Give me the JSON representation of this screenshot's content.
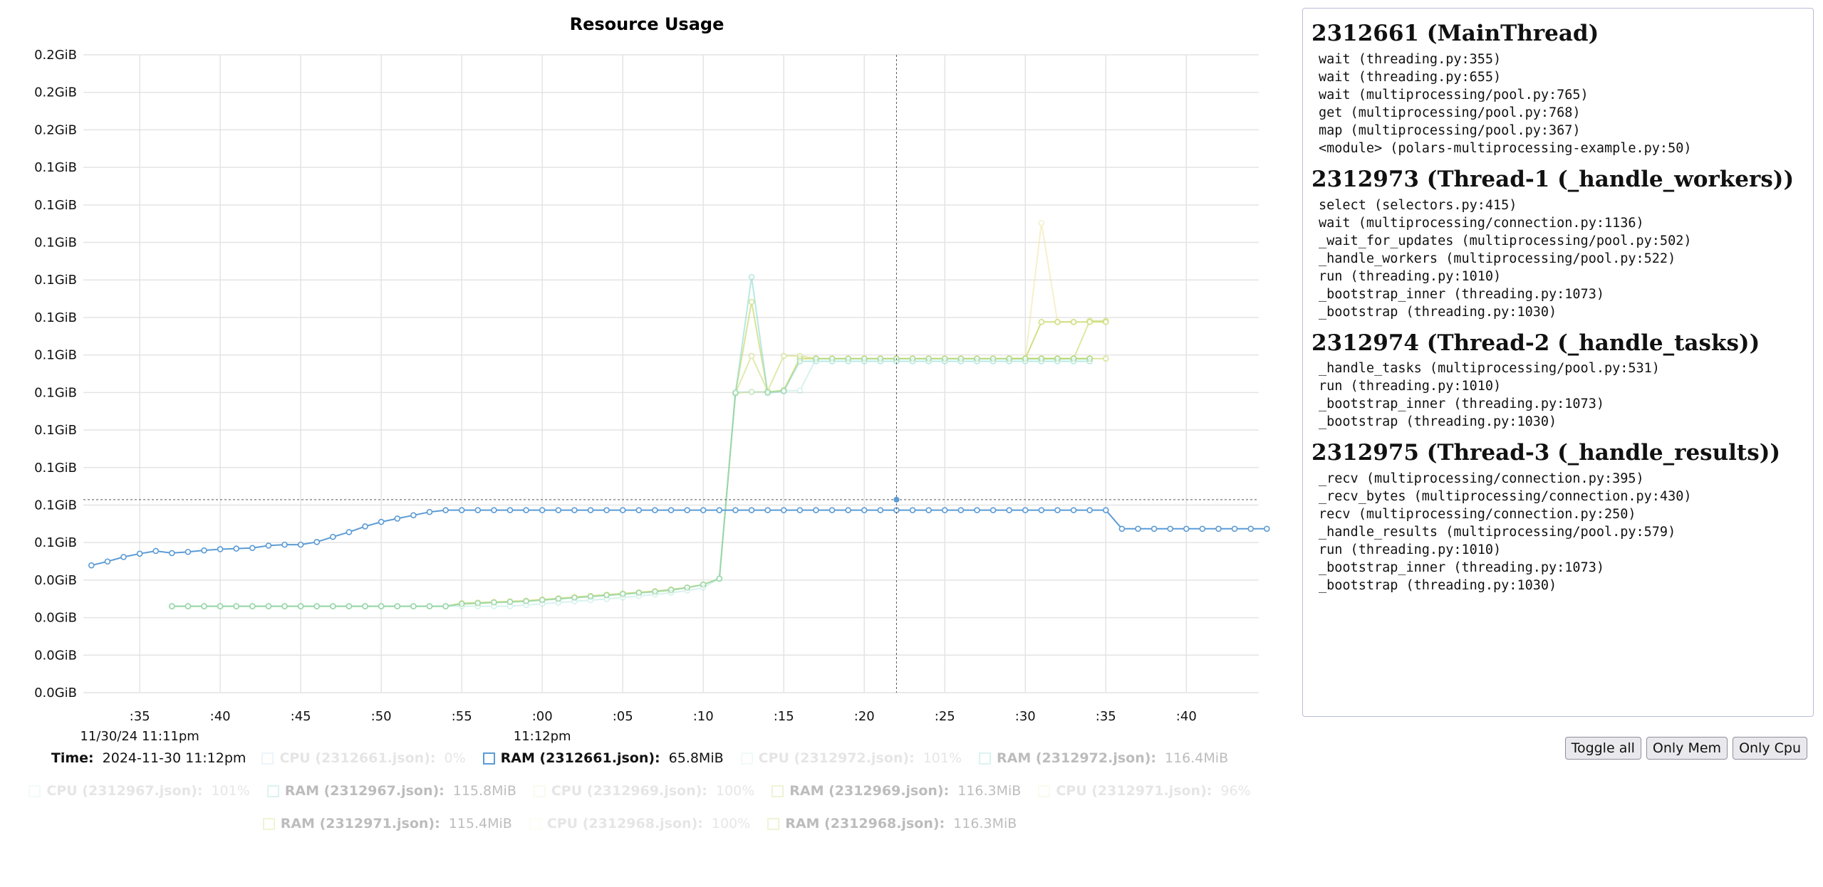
{
  "colors": {
    "mem_main": "#5b9bd5",
    "teal": "#7fd6c9",
    "olive": "#c8d96b",
    "yellow": "#eee39a",
    "grid": "#e4e4e4"
  },
  "chart_data": {
    "type": "line",
    "title": "Resource Usage",
    "grid": true,
    "y_tick_labels": [
      "0.2GiB",
      "0.2GiB",
      "0.2GiB",
      "0.1GiB",
      "0.1GiB",
      "0.1GiB",
      "0.1GiB",
      "0.1GiB",
      "0.1GiB",
      "0.1GiB",
      "0.1GiB",
      "0.1GiB",
      "0.1GiB",
      "0.1GiB",
      "0.0GiB",
      "0.0GiB",
      "0.0GiB",
      "0.0GiB"
    ],
    "y_unit": "GiB",
    "ylim": [
      0.0,
      0.2125
    ],
    "x_tick_labels": [
      ":35",
      ":40",
      ":45",
      ":50",
      ":55",
      ":00",
      ":05",
      ":10",
      ":15",
      ":20",
      ":25",
      ":30",
      ":35",
      ":40"
    ],
    "x_tick_seconds": [
      35,
      40,
      45,
      50,
      55,
      60,
      65,
      70,
      75,
      80,
      85,
      90,
      95,
      100
    ],
    "x_sublabels": [
      {
        "at": 35,
        "text": "11/30/24 11:11pm"
      },
      {
        "at": 60,
        "text": "11:12pm"
      }
    ],
    "xlim": [
      31.5,
      104.5
    ],
    "cursor": {
      "x": 82,
      "y": 0.0643
    },
    "series": [
      {
        "name": "RAM (2312661.json)",
        "color": "#5b9bd5",
        "opacity": 1.0,
        "x": [
          32,
          33,
          34,
          35,
          36,
          37,
          38,
          39,
          40,
          41,
          42,
          43,
          44,
          45,
          46,
          47,
          48,
          49,
          50,
          51,
          52,
          53,
          54,
          55,
          56,
          57,
          58,
          59,
          60,
          61,
          62,
          63,
          64,
          65,
          66,
          67,
          68,
          69,
          70,
          71,
          72,
          73,
          74,
          75,
          76,
          77,
          78,
          79,
          80,
          81,
          82,
          83,
          84,
          85,
          86,
          87,
          88,
          89,
          90,
          91,
          92,
          93,
          94,
          95,
          96,
          97,
          98,
          99,
          100,
          101,
          102,
          103,
          104,
          105
        ],
        "y": [
          0.0424,
          0.0437,
          0.0452,
          0.0463,
          0.0472,
          0.0465,
          0.0469,
          0.0474,
          0.0478,
          0.048,
          0.0482,
          0.049,
          0.0493,
          0.0493,
          0.0502,
          0.0519,
          0.0535,
          0.0554,
          0.0569,
          0.058,
          0.0591,
          0.0602,
          0.0608,
          0.0608,
          0.0608,
          0.0608,
          0.0608,
          0.0608,
          0.0608,
          0.0608,
          0.0608,
          0.0608,
          0.0608,
          0.0608,
          0.0608,
          0.0608,
          0.0608,
          0.0608,
          0.0608,
          0.0608,
          0.0608,
          0.0608,
          0.0608,
          0.0608,
          0.0608,
          0.0608,
          0.0608,
          0.0608,
          0.0608,
          0.0608,
          0.0608,
          0.0608,
          0.0608,
          0.0608,
          0.0608,
          0.0608,
          0.0608,
          0.0608,
          0.0608,
          0.0608,
          0.0608,
          0.0608,
          0.0608,
          0.0608,
          0.0546,
          0.0546,
          0.0546,
          0.0546,
          0.0546,
          0.0546,
          0.0546,
          0.0546,
          0.0546,
          0.0546
        ]
      },
      {
        "name": "RAM (2312972.json)",
        "color": "#7fd6c9",
        "opacity": 0.3,
        "x": [
          37,
          38,
          39,
          40,
          41,
          42,
          43,
          44,
          45,
          46,
          47,
          48,
          49,
          50,
          51,
          52,
          53,
          54,
          55,
          56,
          57,
          58,
          59,
          60,
          61,
          62,
          63,
          64,
          65,
          66,
          67,
          68,
          69,
          70,
          71,
          72,
          73,
          74,
          75,
          76,
          77,
          78,
          79,
          80,
          81,
          82,
          83,
          84,
          85,
          86,
          87,
          88,
          89,
          90,
          91,
          92,
          93,
          94
        ],
        "y": [
          0.0288,
          0.0288,
          0.0288,
          0.0288,
          0.0288,
          0.0288,
          0.0288,
          0.0288,
          0.0288,
          0.0288,
          0.0288,
          0.0288,
          0.0288,
          0.0288,
          0.0288,
          0.0288,
          0.0288,
          0.0288,
          0.0288,
          0.0288,
          0.0288,
          0.0288,
          0.0292,
          0.0296,
          0.03,
          0.0304,
          0.0308,
          0.0312,
          0.0317,
          0.0322,
          0.0327,
          0.0333,
          0.034,
          0.035,
          0.038,
          0.1002,
          0.1002,
          0.1002,
          0.1006,
          0.1006,
          0.1112,
          0.1112,
          0.1112,
          0.1112,
          0.1112,
          0.1112,
          0.1112,
          0.1112,
          0.1112,
          0.1112,
          0.1112,
          0.1112,
          0.1112,
          0.1112,
          0.1112,
          0.1112,
          0.1112,
          0.1112
        ]
      },
      {
        "name": "RAM (2312967.json)",
        "color": "#7fd6c9",
        "opacity": 0.55,
        "x": [
          37,
          38,
          39,
          40,
          41,
          42,
          43,
          44,
          45,
          46,
          47,
          48,
          49,
          50,
          51,
          52,
          53,
          54,
          55,
          56,
          57,
          58,
          59,
          60,
          61,
          62,
          63,
          64,
          65,
          66,
          67,
          68,
          69,
          70,
          71,
          72,
          73,
          74,
          75,
          76,
          77,
          78,
          79,
          80,
          81,
          82,
          83,
          84,
          85,
          86,
          87,
          88,
          89,
          90,
          91,
          92,
          93,
          94
        ],
        "y": [
          0.0288,
          0.0288,
          0.0288,
          0.0288,
          0.0288,
          0.0288,
          0.0288,
          0.0288,
          0.0288,
          0.0288,
          0.0288,
          0.0288,
          0.0288,
          0.0288,
          0.0288,
          0.0288,
          0.0288,
          0.0288,
          0.0296,
          0.0298,
          0.03,
          0.0302,
          0.0304,
          0.0308,
          0.0312,
          0.0316,
          0.032,
          0.0324,
          0.0328,
          0.0332,
          0.0336,
          0.0342,
          0.035,
          0.036,
          0.038,
          0.0998,
          0.1385,
          0.0998,
          0.1004,
          0.1104,
          0.1104,
          0.1104,
          0.1104,
          0.1104,
          0.1104,
          0.1104,
          0.1104,
          0.1104,
          0.1104,
          0.1104,
          0.1104,
          0.1104,
          0.1104,
          0.1104,
          0.1104,
          0.1104,
          0.1104,
          0.1104
        ]
      },
      {
        "name": "RAM (2312969.json)",
        "color": "#c8d96b",
        "opacity": 0.55,
        "x": [
          37,
          38,
          39,
          40,
          41,
          42,
          43,
          44,
          45,
          46,
          47,
          48,
          49,
          50,
          51,
          52,
          53,
          54,
          55,
          56,
          57,
          58,
          59,
          60,
          61,
          62,
          63,
          64,
          65,
          66,
          67,
          68,
          69,
          70,
          71,
          72,
          73,
          74,
          75,
          76,
          77,
          78,
          79,
          80,
          81,
          82,
          83,
          84,
          85,
          86,
          87,
          88,
          89,
          90,
          91,
          92,
          93,
          94
        ],
        "y": [
          0.0288,
          0.0288,
          0.0288,
          0.0288,
          0.0288,
          0.0288,
          0.0288,
          0.0288,
          0.0288,
          0.0288,
          0.0288,
          0.0288,
          0.0288,
          0.0288,
          0.0288,
          0.0288,
          0.0288,
          0.0288,
          0.0296,
          0.0298,
          0.0301,
          0.0303,
          0.0306,
          0.031,
          0.0314,
          0.0318,
          0.0322,
          0.0326,
          0.033,
          0.0334,
          0.0338,
          0.0343,
          0.035,
          0.036,
          0.038,
          0.0998,
          0.1122,
          0.1005,
          0.1122,
          0.1122,
          0.1113,
          0.1113,
          0.1113,
          0.1113,
          0.1113,
          0.1113,
          0.1113,
          0.1113,
          0.1113,
          0.1113,
          0.1113,
          0.1113,
          0.1113,
          0.1113,
          0.1113,
          0.1113,
          0.1113,
          0.1113
        ]
      },
      {
        "name": "RAM (2312971.json)",
        "color": "#c8d96b",
        "opacity": 0.7,
        "x": [
          37,
          38,
          39,
          40,
          41,
          42,
          43,
          44,
          45,
          46,
          47,
          48,
          49,
          50,
          51,
          52,
          53,
          54,
          55,
          56,
          57,
          58,
          59,
          60,
          61,
          62,
          63,
          64,
          65,
          66,
          67,
          68,
          69,
          70,
          71,
          72,
          73,
          74,
          75,
          76,
          77,
          78,
          79,
          80,
          81,
          82,
          83,
          84,
          85,
          86,
          87,
          88,
          89,
          90,
          91,
          92,
          93,
          94
        ],
        "y": [
          0.0288,
          0.0288,
          0.0288,
          0.0288,
          0.0288,
          0.0288,
          0.0288,
          0.0288,
          0.0288,
          0.0288,
          0.0288,
          0.0288,
          0.0288,
          0.0288,
          0.0288,
          0.0288,
          0.0288,
          0.0288,
          0.0298,
          0.03,
          0.0302,
          0.0304,
          0.0306,
          0.031,
          0.0314,
          0.0318,
          0.0322,
          0.0326,
          0.033,
          0.0334,
          0.0338,
          0.0344,
          0.035,
          0.036,
          0.038,
          0.0998,
          0.1302,
          0.1001,
          0.1008,
          0.1113,
          0.1113,
          0.1113,
          0.1113,
          0.1113,
          0.1113,
          0.1113,
          0.1113,
          0.1113,
          0.1113,
          0.1113,
          0.1113,
          0.1113,
          0.1113,
          0.1113,
          0.1113,
          0.1113,
          0.1113,
          0.1113
        ]
      },
      {
        "name": "RAM (2312968.json)",
        "color": "#c8d96b",
        "opacity": 0.45,
        "x": [
          37,
          38,
          39,
          40,
          41,
          42,
          43,
          44,
          45,
          46,
          47,
          48,
          49,
          50,
          51,
          52,
          53,
          54,
          55,
          56,
          57,
          58,
          59,
          60,
          61,
          62,
          63,
          64,
          65,
          66,
          67,
          68,
          69,
          70,
          71,
          72,
          73,
          74,
          75,
          76,
          77,
          78,
          79,
          80,
          81,
          82,
          83,
          84,
          85,
          86,
          87,
          88,
          89,
          90,
          91,
          92,
          93,
          94
        ],
        "y": [
          0.0288,
          0.0288,
          0.0288,
          0.0288,
          0.0288,
          0.0288,
          0.0288,
          0.0288,
          0.0288,
          0.0288,
          0.0288,
          0.0288,
          0.0288,
          0.0288,
          0.0288,
          0.0288,
          0.0288,
          0.0288,
          0.0295,
          0.0297,
          0.03,
          0.0302,
          0.0305,
          0.0308,
          0.0312,
          0.0316,
          0.032,
          0.0324,
          0.0328,
          0.0332,
          0.0336,
          0.034,
          0.035,
          0.036,
          0.038,
          0.0998,
          0.1002,
          0.1002,
          0.1006,
          0.1113,
          0.1113,
          0.1113,
          0.1113,
          0.1113,
          0.1113,
          0.1113,
          0.1113,
          0.1113,
          0.1113,
          0.1113,
          0.1113,
          0.1113,
          0.1113,
          0.1113,
          0.1113,
          0.1113,
          0.1113,
          0.1113
        ]
      },
      {
        "name": "RAM (2312969.json) tail",
        "color": "#c8d96b",
        "opacity": 0.65,
        "x": [
          89,
          90,
          91,
          92,
          93,
          94,
          95
        ],
        "y": [
          0.1113,
          0.1113,
          0.1113,
          0.1113,
          0.1113,
          0.1113,
          0.1113
        ]
      },
      {
        "name": "RAM (2312971.json) tail",
        "color": "#c8d96b",
        "opacity": 0.8,
        "x": [
          89,
          90,
          91,
          92,
          93,
          94,
          95
        ],
        "y": [
          0.1113,
          0.1113,
          0.1235,
          0.1235,
          0.1235,
          0.1235,
          0.1235
        ]
      },
      {
        "name": "RAM (2312968.json) tail",
        "color": "#c8d96b",
        "opacity": 0.6,
        "x": [
          89,
          90,
          91,
          92,
          93,
          94,
          95
        ],
        "y": [
          0.1113,
          0.1113,
          0.1113,
          0.1113,
          0.1113,
          0.1239,
          0.1239
        ]
      },
      {
        "name": "CPU (2312968.json)",
        "color": "#eee39a",
        "opacity": 0.5,
        "x": [
          89,
          90,
          91,
          92,
          93
        ],
        "y": [
          0.1113,
          0.1113,
          0.1565,
          0.1235,
          0.1235
        ]
      }
    ]
  },
  "legend": {
    "time_label": "Time:",
    "time_value": "2024-11-30 11:12pm",
    "items": [
      {
        "name": "CPU (2312661.json):",
        "value": "0%",
        "color": "#5b9bd5",
        "state": "faint"
      },
      {
        "name": "RAM (2312661.json):",
        "value": "65.8MiB",
        "color": "#5b9bd5",
        "state": "active"
      },
      {
        "name": "CPU (2312972.json):",
        "value": "101%",
        "color": "#7fd6c9",
        "state": "faint"
      },
      {
        "name": "RAM (2312972.json):",
        "value": "116.4MiB",
        "color": "#7fd6c9",
        "state": "dim"
      },
      {
        "name": "CPU (2312967.json):",
        "value": "101%",
        "color": "#7fd6c9",
        "state": "faint"
      },
      {
        "name": "RAM (2312967.json):",
        "value": "115.8MiB",
        "color": "#7fd6c9",
        "state": "dim"
      },
      {
        "name": "CPU (2312969.json):",
        "value": "100%",
        "color": "#c8d96b",
        "state": "faint"
      },
      {
        "name": "RAM (2312969.json):",
        "value": "116.3MiB",
        "color": "#c8d96b",
        "state": "dim"
      },
      {
        "name": "CPU (2312971.json):",
        "value": "96%",
        "color": "#c8d96b",
        "state": "faint"
      },
      {
        "name": "RAM (2312971.json):",
        "value": "115.4MiB",
        "color": "#c8d96b",
        "state": "dim"
      },
      {
        "name": "CPU (2312968.json):",
        "value": "100%",
        "color": "#eee39a",
        "state": "faint"
      },
      {
        "name": "RAM (2312968.json):",
        "value": "116.3MiB",
        "color": "#c8d96b",
        "state": "dim"
      }
    ]
  },
  "stacks": [
    {
      "title": "2312661 (MainThread)",
      "frames": [
        "wait (threading.py:355)",
        "wait (threading.py:655)",
        "wait (multiprocessing/pool.py:765)",
        "get (multiprocessing/pool.py:768)",
        "map (multiprocessing/pool.py:367)",
        "<module> (polars-multiprocessing-example.py:50)"
      ]
    },
    {
      "title": "2312973 (Thread-1 (_handle_workers))",
      "frames": [
        "select (selectors.py:415)",
        "wait (multiprocessing/connection.py:1136)",
        "_wait_for_updates (multiprocessing/pool.py:502)",
        "_handle_workers (multiprocessing/pool.py:522)",
        "run (threading.py:1010)",
        "_bootstrap_inner (threading.py:1073)",
        "_bootstrap (threading.py:1030)"
      ]
    },
    {
      "title": "2312974 (Thread-2 (_handle_tasks))",
      "frames": [
        "_handle_tasks (multiprocessing/pool.py:531)",
        "run (threading.py:1010)",
        "_bootstrap_inner (threading.py:1073)",
        "_bootstrap (threading.py:1030)"
      ]
    },
    {
      "title": "2312975 (Thread-3 (_handle_results))",
      "frames": [
        "_recv (multiprocessing/connection.py:395)",
        "_recv_bytes (multiprocessing/connection.py:430)",
        "recv (multiprocessing/connection.py:250)",
        "_handle_results (multiprocessing/pool.py:579)",
        "run (threading.py:1010)",
        "_bootstrap_inner (threading.py:1073)",
        "_bootstrap (threading.py:1030)"
      ]
    }
  ],
  "buttons": {
    "toggle_all": "Toggle all",
    "only_mem": "Only Mem",
    "only_cpu": "Only Cpu"
  }
}
